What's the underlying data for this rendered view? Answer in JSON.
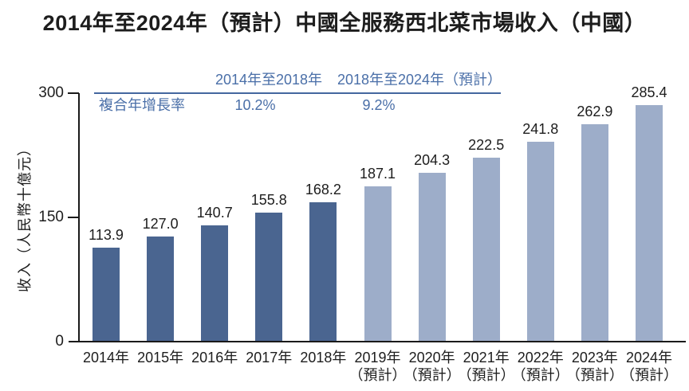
{
  "title": "2014年至2024年（預計）中國全服務西北菜市場收入（中國）",
  "cagr_table": {
    "row_label": "複合年增長率",
    "columns": [
      {
        "header": "2014年至2018年",
        "value": "10.2%"
      },
      {
        "header": "2018年至2024年（預計）",
        "value": "9.2%"
      }
    ]
  },
  "colors": {
    "accent_blue": "#4A6FA8",
    "rule_blue": "#44679F",
    "bar_actual": "#4A6590",
    "bar_forecast": "#9DADC9",
    "axis": "#1A1A1A",
    "text": "#1D1D1D"
  },
  "chart_data": {
    "type": "bar",
    "title": "2014年至2024年（預計）中國全服務西北菜市場收入（中國）",
    "xlabel": "",
    "ylabel": "收入（人民幣十億元）",
    "ylim": [
      0,
      300
    ],
    "yticks": [
      0,
      150,
      300
    ],
    "grid": false,
    "legend_position": "none",
    "categories": [
      "2014年",
      "2015年",
      "2016年",
      "2017年",
      "2018年",
      "2019年",
      "2020年",
      "2021年",
      "2022年",
      "2023年",
      "2024年"
    ],
    "group_colors": {
      "actual": "#4A6590",
      "forecast": "#9DADC9"
    },
    "annotations": {
      "cagr_2014_2018": "10.2%",
      "cagr_2018_2024": "9.2%"
    },
    "bars": [
      {
        "category": "2014年",
        "sublabel": "",
        "value": 113.9,
        "label": "113.9",
        "group": "actual"
      },
      {
        "category": "2015年",
        "sublabel": "",
        "value": 127.0,
        "label": "127.0",
        "group": "actual"
      },
      {
        "category": "2016年",
        "sublabel": "",
        "value": 140.7,
        "label": "140.7",
        "group": "actual"
      },
      {
        "category": "2017年",
        "sublabel": "",
        "value": 155.8,
        "label": "155.8",
        "group": "actual"
      },
      {
        "category": "2018年",
        "sublabel": "",
        "value": 168.2,
        "label": "168.2",
        "group": "actual"
      },
      {
        "category": "2019年",
        "sublabel": "（預計）",
        "value": 187.1,
        "label": "187.1",
        "group": "forecast"
      },
      {
        "category": "2020年",
        "sublabel": "（預計）",
        "value": 204.3,
        "label": "204.3",
        "group": "forecast"
      },
      {
        "category": "2021年",
        "sublabel": "（預計）",
        "value": 222.5,
        "label": "222.5",
        "group": "forecast"
      },
      {
        "category": "2022年",
        "sublabel": "（預計）",
        "value": 241.8,
        "label": "241.8",
        "group": "forecast"
      },
      {
        "category": "2023年",
        "sublabel": "（預計）",
        "value": 262.9,
        "label": "262.9",
        "group": "forecast"
      },
      {
        "category": "2024年",
        "sublabel": "（預計）",
        "value": 285.4,
        "label": "285.4",
        "group": "forecast"
      }
    ]
  }
}
